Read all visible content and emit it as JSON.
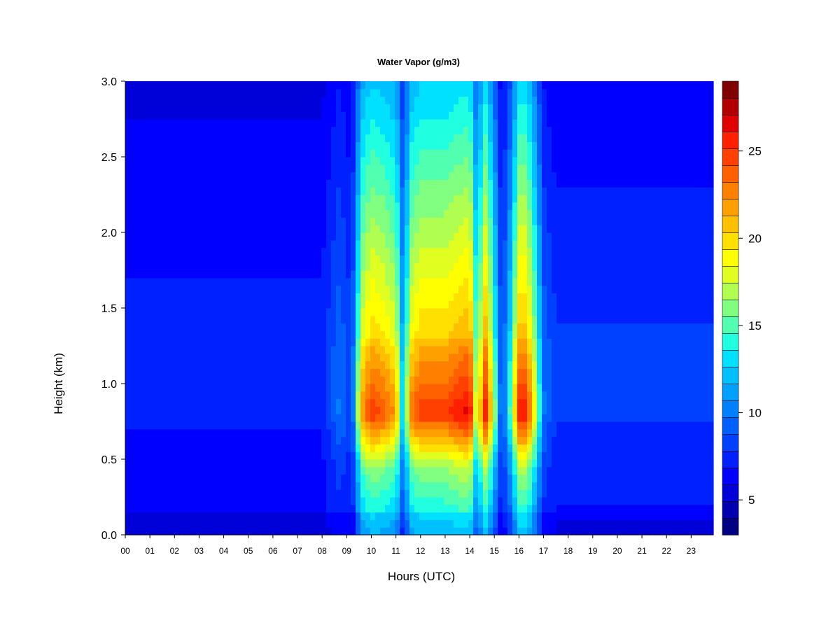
{
  "chart_data": {
    "type": "heatmap",
    "title": "Water Vapor (g/m3)",
    "xlabel": "Hours (UTC)",
    "ylabel": "Height (km)",
    "x_ticks": [
      "00",
      "01",
      "02",
      "03",
      "04",
      "05",
      "06",
      "07",
      "08",
      "09",
      "10",
      "11",
      "12",
      "13",
      "14",
      "15",
      "16",
      "17",
      "18",
      "19",
      "20",
      "21",
      "22",
      "23"
    ],
    "y_ticks": [
      "0.0",
      "0.5",
      "1.0",
      "1.5",
      "2.0",
      "2.5",
      "3.0"
    ],
    "xlim": [
      0,
      23.9
    ],
    "ylim": [
      0,
      3.0
    ],
    "colorbar": {
      "ticks": [
        "5",
        "10",
        "15",
        "20",
        "25"
      ],
      "tick_values": [
        5,
        10,
        15,
        20,
        25
      ],
      "range": [
        3,
        29
      ],
      "n_levels": 26,
      "colors": [
        "#000080",
        "#0000b0",
        "#0000d8",
        "#0000ff",
        "#0020ff",
        "#0040ff",
        "#0060ff",
        "#0080ff",
        "#00a0ff",
        "#00c0ff",
        "#00e0ff",
        "#20ffe0",
        "#50ffb0",
        "#80ff80",
        "#b0ff50",
        "#e0ff20",
        "#ffff00",
        "#ffe000",
        "#ffc000",
        "#ffa000",
        "#ff8000",
        "#ff6000",
        "#ff4000",
        "#ff2000",
        "#e00000",
        "#b00000",
        "#800000"
      ]
    },
    "description_free_fields": {},
    "time_profile": {
      "hours": [
        0,
        1,
        2,
        3,
        4,
        5,
        6,
        7,
        8,
        8.7,
        9.2,
        9.6,
        10,
        10.5,
        11,
        11.3,
        11.6,
        12,
        12.5,
        13,
        13.5,
        14,
        14.3,
        14.6,
        14.9,
        15.3,
        15.7,
        16,
        16.3,
        16.6,
        17,
        17.5,
        18,
        19,
        20,
        21,
        22,
        23,
        23.9
      ],
      "peak_value_at_0p8km": [
        6,
        6,
        6,
        6,
        6,
        6,
        6,
        6,
        7,
        10,
        8,
        22,
        25,
        24,
        22,
        12,
        23,
        25,
        25,
        25,
        26,
        27,
        16,
        27,
        20,
        8,
        16,
        26,
        26,
        20,
        10,
        8,
        8,
        8,
        8,
        8,
        8,
        8,
        8
      ]
    }
  }
}
